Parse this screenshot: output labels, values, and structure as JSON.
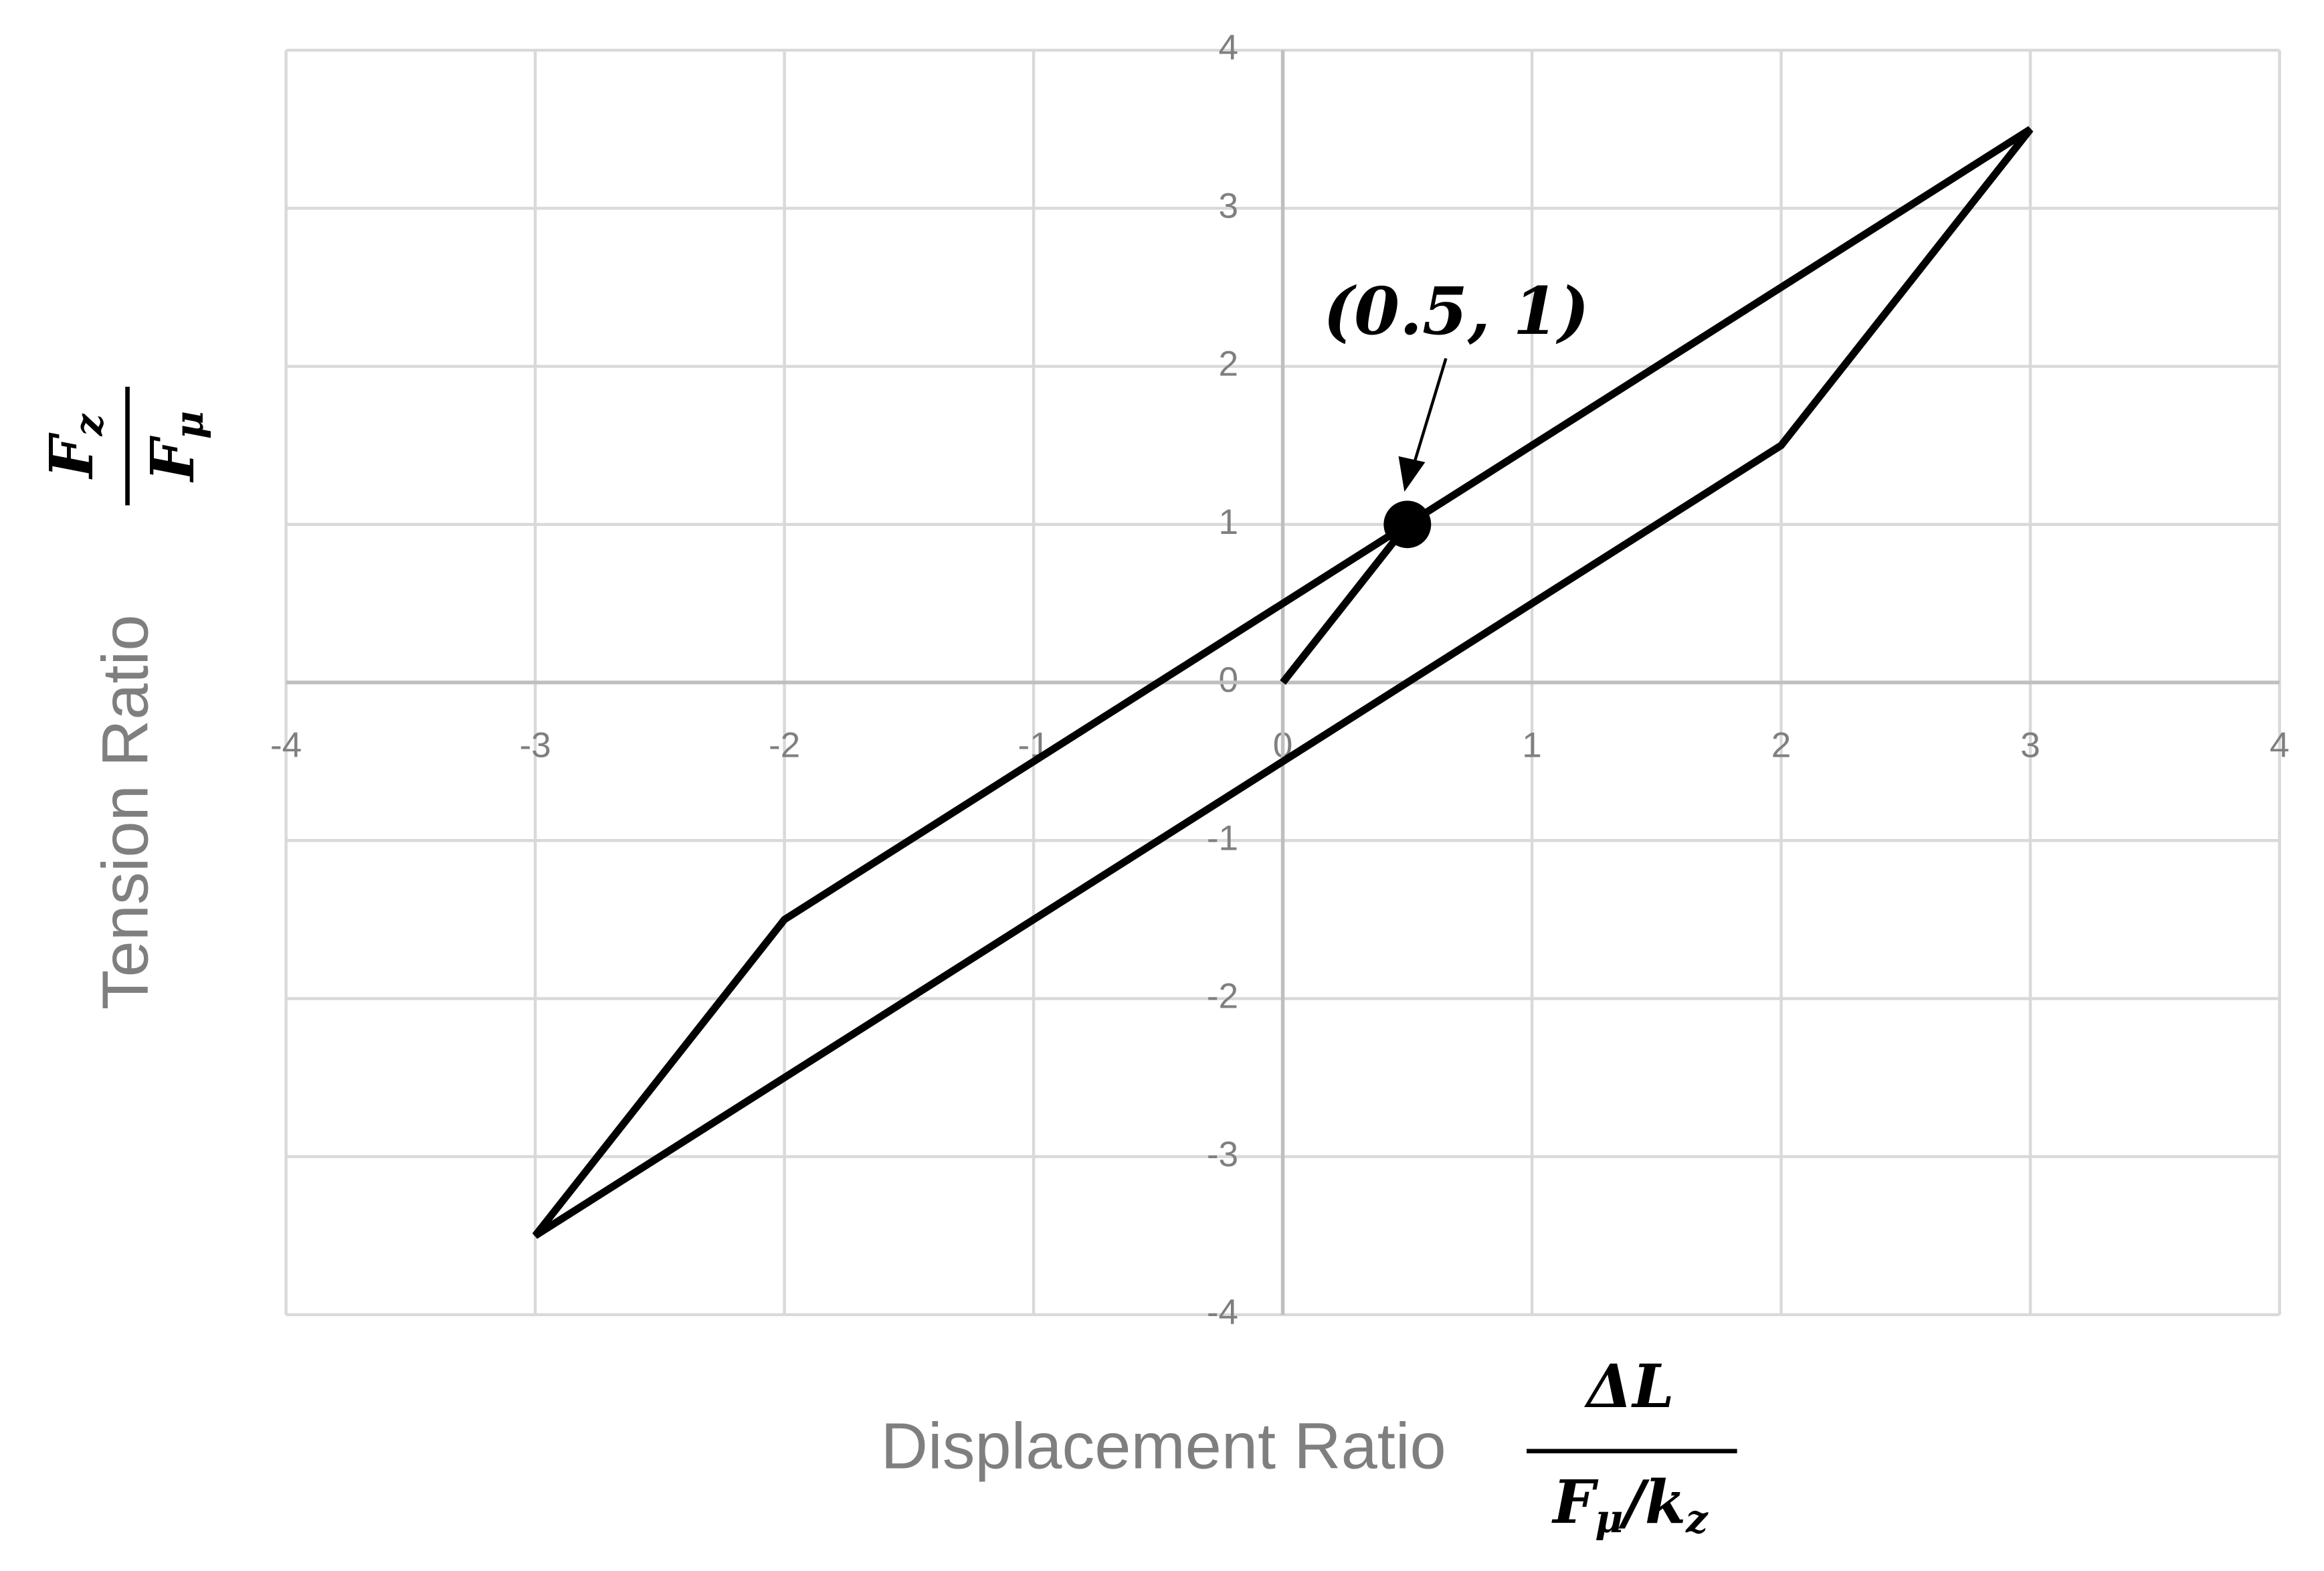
{
  "chart_data": {
    "type": "line",
    "x": [
      0,
      0.5,
      3,
      2,
      -3,
      -2,
      0.5
    ],
    "series": [
      {
        "color": "#000000",
        "values": [
          0,
          1,
          3.5,
          1.5,
          -3.5,
          -1.5,
          1
        ]
      }
    ],
    "xlim": [
      -4,
      4
    ],
    "ylim": [
      -4,
      4
    ],
    "xticks": [
      -4,
      -3,
      -2,
      -1,
      0,
      1,
      2,
      3,
      4
    ],
    "yticks": [
      -4,
      -3,
      -2,
      -1,
      0,
      1,
      2,
      3,
      4
    ],
    "grid": true,
    "x_label": "Displacement Ratio",
    "y_label": "Tension Ratio",
    "x_label_formula": {
      "numerator": "ΔL",
      "denominator": [
        {
          "base": "F",
          "sub": "μ"
        },
        {
          "base": "/k",
          "sub": "z"
        }
      ]
    },
    "y_label_formula": {
      "numerator": {
        "base": "F",
        "sub": "z"
      },
      "denominator": {
        "base": "F",
        "sub": "μ"
      }
    },
    "annotation": {
      "text": "(0.5, 1)",
      "x": 0.5,
      "y": 1
    }
  }
}
